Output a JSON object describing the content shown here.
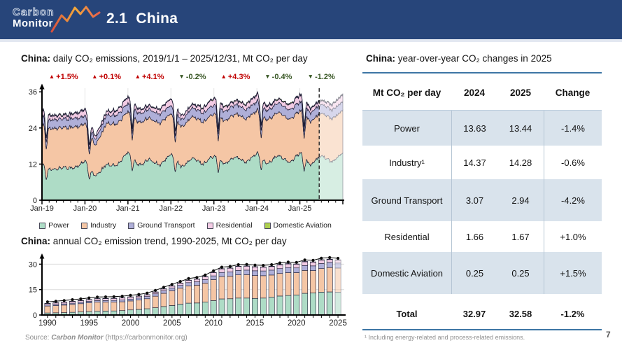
{
  "header": {
    "logo_top": "Carbon",
    "logo_bottom": "Monitor",
    "title": "2.1  China"
  },
  "left": {
    "daily_title_bold": "China:",
    "daily_title_rest": " daily CO₂ emissions, 2019/1/1 – 2025/12/31, Mt CO₂ per day",
    "legend": [
      {
        "label": "Power",
        "color": "#AEDCC6"
      },
      {
        "label": "Industry",
        "color": "#F5C6A5"
      },
      {
        "label": "Ground Transport",
        "color": "#AFAFD8"
      },
      {
        "label": "Residential",
        "color": "#F3CCE4"
      },
      {
        "label": "Domestic Aviation",
        "color": "#ADCF4F"
      }
    ],
    "annual_title_bold": "China:",
    "annual_title_rest": " annual CO₂ emission trend, 1990-2025, Mt CO₂ per day",
    "source_prefix": "Source: ",
    "source_name": "Carbon Monitor",
    "source_suffix": " (https://carbonmonitor.org)"
  },
  "right": {
    "title_bold": "China:",
    "title_rest": " year-over-year CO₂ changes in 2025",
    "table": {
      "headers": [
        "Mt CO₂ per day",
        "2024",
        "2025",
        "Change"
      ],
      "rows": [
        {
          "label": "Power",
          "v2024": "13.63",
          "v2025": "13.44",
          "change": "-1.4%"
        },
        {
          "label": "Industry¹",
          "v2024": "14.37",
          "v2025": "14.28",
          "change": "-0.6%"
        },
        {
          "label": "Ground Transport",
          "v2024": "3.07",
          "v2025": "2.94",
          "change": "-4.2%"
        },
        {
          "label": "Residential",
          "v2024": "1.66",
          "v2025": "1.67",
          "change": "+1.0%"
        },
        {
          "label": "Domestic Aviation",
          "v2024": "0.25",
          "v2025": "0.25",
          "change": "+1.5%"
        }
      ],
      "total": {
        "label": "Total",
        "v2024": "32.97",
        "v2025": "32.58",
        "change": "-1.2%"
      }
    },
    "footnote": "¹ Including energy-related and process-related emissions.",
    "page_number": "7"
  },
  "colors": {
    "annotation_up": "#C00000",
    "annotation_down": "#375623",
    "header_bg": "#27457A",
    "logo_gradient": [
      "#D94F3D",
      "#F2A93B",
      "#E8604C"
    ],
    "table_row_alt": "#D9E3EC",
    "table_rule": "#3D76A5",
    "area_outline": "#1B1B33"
  },
  "chart_data": [
    {
      "type": "area",
      "title": "China: daily CO₂ emissions, 2019/1/1 – 2025/12/31, Mt CO₂ per day",
      "stacked": true,
      "ylim": [
        0,
        38
      ],
      "yticks": [
        0,
        12,
        24,
        36
      ],
      "xtick_labels": [
        "Jan-19",
        "Jan-20",
        "Jan-21",
        "Jan-22",
        "Jan-23",
        "Jan-24",
        "Jan-25"
      ],
      "x_quarterly_decimal_years": [
        2019.0,
        2019.25,
        2019.5,
        2019.75,
        2020.0,
        2020.25,
        2020.5,
        2020.75,
        2021.0,
        2021.25,
        2021.5,
        2021.75,
        2022.0,
        2022.25,
        2022.5,
        2022.75,
        2023.0,
        2023.25,
        2023.5,
        2023.75,
        2024.0,
        2024.25,
        2024.5,
        2024.75,
        2025.0,
        2025.25,
        2025.5,
        2025.75,
        2026.0
      ],
      "series": [
        {
          "name": "Power",
          "color": "#AEDCC6",
          "values": [
            11.8,
            10.0,
            11.0,
            10.6,
            13.0,
            7.8,
            12.0,
            11.5,
            16.2,
            11.5,
            13.6,
            11.6,
            15.4,
            11.0,
            14.0,
            12.0,
            15.0,
            12.0,
            14.6,
            12.4,
            15.8,
            12.0,
            15.0,
            12.4,
            15.8,
            11.6,
            15.0,
            12.6,
            15.8
          ]
        },
        {
          "name": "Industry",
          "color": "#F5C6A5",
          "values": [
            13.2,
            13.6,
            13.4,
            13.6,
            12.4,
            10.2,
            13.6,
            13.8,
            13.5,
            14.2,
            13.8,
            14.0,
            13.4,
            13.2,
            13.8,
            14.0,
            14.0,
            14.4,
            14.2,
            14.4,
            14.2,
            14.5,
            14.3,
            14.4,
            14.0,
            14.4,
            14.2,
            14.3,
            14.2
          ]
        },
        {
          "name": "Ground Transport",
          "color": "#AFAFD8",
          "values": [
            2.8,
            2.9,
            2.9,
            2.9,
            2.6,
            1.9,
            2.8,
            2.9,
            2.7,
            3.0,
            2.9,
            3.0,
            2.7,
            2.3,
            2.9,
            3.0,
            2.9,
            3.1,
            3.1,
            3.1,
            3.0,
            3.1,
            3.1,
            3.1,
            2.9,
            2.9,
            3.0,
            2.9,
            2.9
          ]
        },
        {
          "name": "Residential",
          "color": "#F3CCE4",
          "values": [
            2.0,
            1.3,
            1.1,
            1.5,
            2.1,
            1.1,
            1.1,
            1.5,
            2.1,
            1.3,
            1.1,
            1.6,
            2.2,
            1.3,
            1.1,
            1.6,
            2.2,
            1.4,
            1.2,
            1.6,
            2.2,
            1.4,
            1.2,
            1.7,
            2.3,
            1.4,
            1.2,
            1.7,
            2.3
          ]
        },
        {
          "name": "Domestic Aviation",
          "color": "#ADCF4F",
          "values": [
            0.25,
            0.25,
            0.25,
            0.25,
            0.2,
            0.08,
            0.18,
            0.2,
            0.2,
            0.2,
            0.22,
            0.22,
            0.15,
            0.08,
            0.2,
            0.25,
            0.25,
            0.26,
            0.26,
            0.26,
            0.25,
            0.25,
            0.26,
            0.26,
            0.25,
            0.25,
            0.25,
            0.25,
            0.25
          ]
        }
      ],
      "forecast_start_x": 2025.45,
      "yoy_annotations": [
        {
          "year": "2019",
          "label": "+1.5%",
          "direction": "up"
        },
        {
          "year": "2020",
          "label": "+0.1%",
          "direction": "up"
        },
        {
          "year": "2021",
          "label": "+4.1%",
          "direction": "up"
        },
        {
          "year": "2022",
          "label": "-0.2%",
          "direction": "down"
        },
        {
          "year": "2023",
          "label": "+4.3%",
          "direction": "up"
        },
        {
          "year": "2024",
          "label": "-0.4%",
          "direction": "down"
        },
        {
          "year": "2025",
          "label": "-1.2%",
          "direction": "down"
        }
      ]
    },
    {
      "type": "bar",
      "title": "China: annual CO₂ emission trend, 1990-2025, Mt CO₂ per day",
      "stacked": true,
      "ylim": [
        0,
        34
      ],
      "yticks": [
        0,
        15,
        30
      ],
      "xtick_labels": [
        "1990",
        "1995",
        "2000",
        "2005",
        "2010",
        "2015",
        "2020",
        "2025"
      ],
      "categories": [
        1990,
        1991,
        1992,
        1993,
        1994,
        1995,
        1996,
        1997,
        1998,
        1999,
        2000,
        2001,
        2002,
        2003,
        2004,
        2005,
        2006,
        2007,
        2008,
        2009,
        2010,
        2011,
        2012,
        2013,
        2014,
        2015,
        2016,
        2017,
        2018,
        2019,
        2020,
        2021,
        2022,
        2023,
        2024,
        2025
      ],
      "series": [
        {
          "name": "Power",
          "color": "#AEDCC6",
          "values": [
            1.2,
            1.3,
            1.4,
            1.6,
            1.8,
            2.0,
            2.2,
            2.3,
            2.4,
            2.6,
            3.0,
            3.3,
            3.7,
            4.3,
            5.0,
            5.6,
            6.4,
            7.0,
            7.1,
            7.6,
            8.5,
            9.5,
            9.6,
            10.0,
            10.0,
            9.8,
            10.0,
            10.5,
            11.2,
            11.5,
            11.8,
            12.8,
            13.0,
            13.5,
            13.63,
            13.44
          ]
        },
        {
          "name": "Industry",
          "color": "#F5C6A5",
          "values": [
            4.1,
            4.25,
            4.45,
            4.65,
            4.9,
            5.2,
            5.4,
            5.3,
            5.2,
            5.2,
            5.3,
            5.5,
            5.9,
            6.8,
            7.8,
            8.7,
            9.4,
            10.2,
            10.5,
            11.2,
            12.4,
            13.2,
            13.3,
            13.7,
            13.8,
            13.5,
            13.2,
            13.1,
            13.3,
            13.5,
            13.2,
            13.5,
            13.2,
            13.9,
            14.37,
            14.28
          ]
        },
        {
          "name": "Ground Transport",
          "color": "#AFAFD8",
          "values": [
            0.6,
            0.65,
            0.7,
            0.75,
            0.8,
            0.85,
            0.9,
            0.95,
            1.0,
            1.05,
            1.1,
            1.2,
            1.3,
            1.4,
            1.5,
            1.6,
            1.7,
            1.9,
            2.0,
            2.1,
            2.2,
            2.4,
            2.5,
            2.6,
            2.7,
            2.8,
            2.8,
            2.9,
            2.9,
            3.0,
            2.8,
            2.9,
            2.8,
            3.0,
            3.07,
            2.94
          ]
        },
        {
          "name": "Residential",
          "color": "#F3CCE4",
          "values": [
            0.95,
            1.0,
            1.05,
            1.1,
            1.05,
            1.1,
            1.15,
            1.2,
            1.25,
            1.3,
            1.25,
            1.15,
            1.05,
            1.05,
            1.1,
            1.2,
            1.3,
            1.4,
            1.55,
            1.65,
            1.95,
            2.1,
            2.2,
            2.35,
            2.3,
            2.25,
            2.2,
            2.1,
            2.2,
            2.1,
            2.2,
            2.2,
            2.2,
            2.0,
            1.66,
            1.67
          ]
        },
        {
          "name": "Domestic Aviation",
          "color": "#ADCF4F",
          "values": [
            0.02,
            0.02,
            0.03,
            0.03,
            0.04,
            0.04,
            0.05,
            0.05,
            0.05,
            0.06,
            0.06,
            0.07,
            0.07,
            0.08,
            0.09,
            0.1,
            0.1,
            0.11,
            0.12,
            0.13,
            0.14,
            0.15,
            0.16,
            0.17,
            0.18,
            0.19,
            0.2,
            0.22,
            0.24,
            0.25,
            0.15,
            0.2,
            0.17,
            0.23,
            0.25,
            0.25
          ]
        }
      ],
      "totals_marker": "black dots connected by line (sum of stacked series)",
      "faded_last_bar": true
    },
    {
      "type": "table",
      "title": "China: year-over-year CO₂ changes in 2025",
      "columns": [
        "Mt CO₂ per day",
        "2024",
        "2025",
        "Change"
      ],
      "rows": [
        [
          "Power",
          13.63,
          13.44,
          "-1.4%"
        ],
        [
          "Industry¹",
          14.37,
          14.28,
          "-0.6%"
        ],
        [
          "Ground Transport",
          3.07,
          2.94,
          "-4.2%"
        ],
        [
          "Residential",
          1.66,
          1.67,
          "+1.0%"
        ],
        [
          "Domestic Aviation",
          0.25,
          0.25,
          "+1.5%"
        ],
        [
          "Total",
          32.97,
          32.58,
          "-1.2%"
        ]
      ]
    }
  ]
}
